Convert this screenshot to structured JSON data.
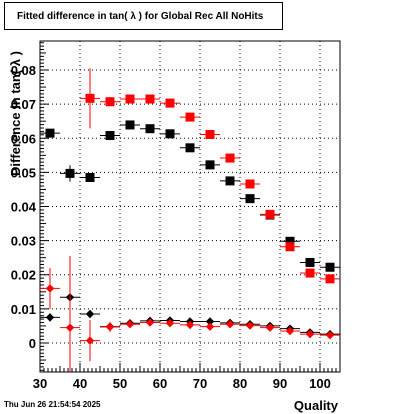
{
  "title": "Fitted difference in tan( λ ) for Global Rec All NoHits",
  "timestamp": "Thu Jun 26 21:54:54 2025",
  "chart_data": {
    "type": "scatter",
    "title": "Fitted difference in tan( λ ) for Global Rec All NoHits",
    "xlabel": "Quality",
    "ylabel": "Difference in tan( λ )",
    "xlim": [
      30,
      105
    ],
    "ylim": [
      -0.0085,
      0.0885
    ],
    "grid": true,
    "xticks": [
      30,
      40,
      50,
      60,
      70,
      80,
      90,
      100
    ],
    "xtick_labels": [
      "30",
      "40",
      "50",
      "60",
      "70",
      "80",
      "90",
      "100"
    ],
    "yticks": [
      0,
      0.01,
      0.02,
      0.03,
      0.04,
      0.05,
      0.06,
      0.07,
      0.08
    ],
    "ytick_labels": [
      "0",
      "0.01",
      "0.02",
      "0.03",
      "0.04",
      "0.05",
      "0.06",
      "0.07",
      "0.08"
    ],
    "series": [
      {
        "color": "#000000",
        "marker": "square",
        "x": [
          32.5,
          37.5,
          42.5,
          47.5,
          52.5,
          57.5,
          62.5,
          67.5,
          72.5,
          77.5,
          82.5,
          87.5,
          92.5,
          97.5,
          102.5
        ],
        "y": [
          0.0615,
          0.0497,
          0.0485,
          0.0608,
          0.0639,
          0.0628,
          0.0613,
          0.0572,
          0.0522,
          0.0475,
          0.0423,
          0.0375,
          0.0298,
          0.0236,
          0.0222
        ],
        "yerr": [
          0.0011,
          0.0024,
          0.0011,
          0.0006,
          0.0004,
          0.0004,
          0.0004,
          0.0004,
          0.0004,
          0.0004,
          0.0004,
          0.0004,
          0.0004,
          0.0004,
          0.0004
        ]
      },
      {
        "color": "#ff0000",
        "marker": "square",
        "x": [
          42.5,
          47.5,
          52.5,
          57.5,
          62.5,
          67.5,
          72.5,
          77.5,
          82.5,
          87.5,
          92.5,
          97.5,
          102.5
        ],
        "y": [
          0.0717,
          0.0707,
          0.0715,
          0.0715,
          0.0703,
          0.0662,
          0.0611,
          0.0542,
          0.0466,
          0.0377,
          0.0282,
          0.0205,
          0.0188
        ],
        "yerr": [
          0.0088,
          0.0013,
          0.0007,
          0.0006,
          0.0005,
          0.0005,
          0.0005,
          0.0005,
          0.0005,
          0.0005,
          0.0005,
          0.0005,
          0.0005
        ]
      },
      {
        "color": "#000000",
        "marker": "diamond",
        "x": [
          32.5,
          37.5,
          42.5,
          47.5,
          52.5,
          57.5,
          62.5,
          67.5,
          72.5,
          77.5,
          82.5,
          87.5,
          92.5,
          97.5,
          102.5
        ],
        "y": [
          0.0075,
          0.0134,
          0.0085,
          0.0048,
          0.0058,
          0.0065,
          0.0066,
          0.0063,
          0.0063,
          0.0059,
          0.0055,
          0.005,
          0.0042,
          0.0031,
          0.0026
        ],
        "yerr": [
          0.0012,
          0.003,
          0.0012,
          0.0005,
          0.0004,
          0.0004,
          0.0004,
          0.0004,
          0.0004,
          0.0004,
          0.0004,
          0.0004,
          0.0004,
          0.0004,
          0.0004
        ]
      },
      {
        "color": "#ff0000",
        "marker": "diamond",
        "x": [
          32.5,
          37.5,
          42.5,
          47.5,
          52.5,
          57.5,
          62.5,
          67.5,
          72.5,
          77.5,
          82.5,
          87.5,
          92.5,
          97.5,
          102.5
        ],
        "y": [
          0.016,
          0.0045,
          0.0007,
          0.0047,
          0.0055,
          0.006,
          0.0058,
          0.0053,
          0.0048,
          0.0055,
          0.0051,
          0.0045,
          0.0035,
          0.0026,
          0.0023
        ],
        "yerr": [
          0.006,
          0.021,
          0.006,
          0.0015,
          0.0007,
          0.0005,
          0.0005,
          0.0005,
          0.0005,
          0.0005,
          0.0005,
          0.0005,
          0.0005,
          0.0005,
          0.0005
        ]
      }
    ]
  }
}
